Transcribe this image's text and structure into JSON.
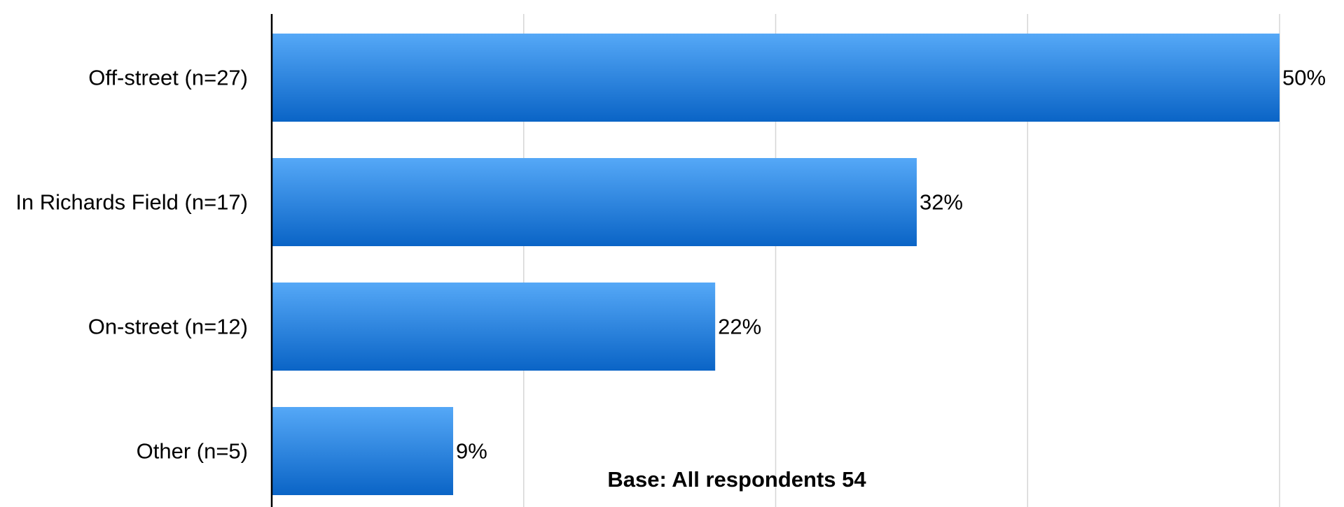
{
  "chart_data": {
    "type": "bar",
    "orientation": "horizontal",
    "categories": [
      "Off-street (n=27)",
      "In Richards Field (n=17)",
      "On-street (n=12)",
      "Other (n=5)"
    ],
    "values": [
      50,
      32,
      22,
      9
    ],
    "value_labels": [
      "50%",
      "32%",
      "22%",
      "9%"
    ],
    "title": "",
    "xlabel": "",
    "ylabel": "",
    "xlim": [
      0,
      50
    ],
    "gridlines": [
      12.5,
      25,
      37.5,
      50
    ],
    "grid": true,
    "legend": "none",
    "annotation": "Base: All respondents 54",
    "colors": {
      "bar_top": "#55a8f7",
      "bar_bottom": "#0a64c6",
      "gridline": "#d6d6d6",
      "axis": "#000000"
    }
  }
}
